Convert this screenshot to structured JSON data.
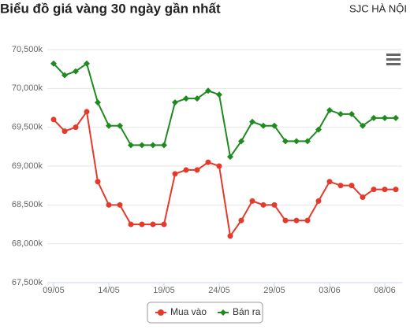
{
  "chart_data": {
    "type": "line",
    "title": "Biểu đồ giá vàng 30 ngày gần nhất",
    "subtitle": "SJC HÀ NỘI",
    "categories": [
      "09/05",
      null,
      null,
      null,
      null,
      "14/05",
      null,
      null,
      null,
      null,
      "19/05",
      null,
      null,
      null,
      null,
      "24/05",
      null,
      null,
      null,
      null,
      "29/05",
      null,
      null,
      null,
      null,
      "03/06",
      null,
      null,
      null,
      null,
      "08/06",
      null
    ],
    "series": [
      {
        "name": "Mua vào",
        "color": "#e53a2b",
        "marker": "circle",
        "values": [
          69600,
          69450,
          69500,
          69700,
          68800,
          68500,
          68500,
          68250,
          68250,
          68250,
          68250,
          68900,
          68950,
          68950,
          69050,
          69000,
          68100,
          68300,
          68550,
          68500,
          68500,
          68300,
          68300,
          68300,
          68550,
          68800,
          68750,
          68750,
          68600,
          68700,
          68700,
          68700
        ]
      },
      {
        "name": "Bán ra",
        "color": "#1f8a1f",
        "marker": "diamond",
        "values": [
          70320,
          70170,
          70220,
          70320,
          69820,
          69520,
          69520,
          69270,
          69270,
          69270,
          69270,
          69820,
          69870,
          69870,
          69970,
          69920,
          69120,
          69320,
          69570,
          69520,
          69520,
          69320,
          69320,
          69320,
          69470,
          69720,
          69670,
          69670,
          69520,
          69620,
          69620,
          69620
        ]
      }
    ],
    "ylim": [
      67500,
      70500
    ],
    "yticks": [
      {
        "value": 67500,
        "label": "67,500k"
      },
      {
        "value": 68000,
        "label": "68,000k"
      },
      {
        "value": 68500,
        "label": "68,500k"
      },
      {
        "value": 69000,
        "label": "69,000k"
      },
      {
        "value": 69500,
        "label": "69,500k"
      },
      {
        "value": 70000,
        "label": "70,000k"
      },
      {
        "value": 70500,
        "label": "70,500k"
      }
    ],
    "grid": true,
    "legend": "bottom"
  }
}
